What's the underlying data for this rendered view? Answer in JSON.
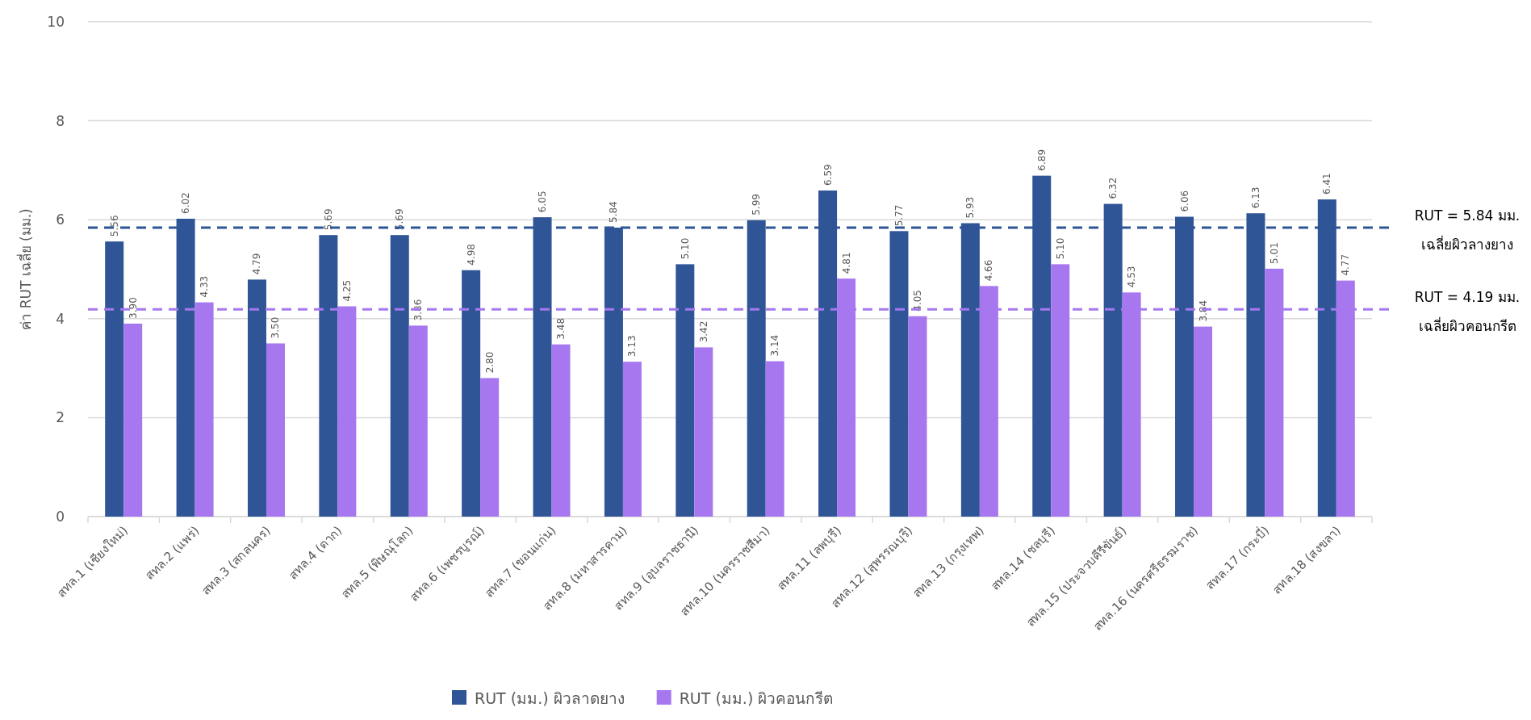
{
  "chart_data": {
    "type": "bar",
    "ylabel": "ค่า RUT เฉลี่ย (มม.)",
    "categories": [
      "สทล.1 (เชียงใหม่)",
      "สทล.2 (แพร่)",
      "สทล.3 (สกลนคร)",
      "สทล.4 (ตาก)",
      "สทล.5 (พิษณุโลก)",
      "สทล.6 (เพชรบูรณ์)",
      "สทล.7 (ขอนแก่น)",
      "สทล.8 (มหาสารคาม)",
      "สทล.9 (อุบลราชธานี)",
      "สทล.10 (นครราชสีมา)",
      "สทล.11 (ลพบุรี)",
      "สทล.12 (สุพรรณบุรี)",
      "สทล.13 (กรุงเทพ)",
      "สทล.14 (ชลบุรี)",
      "สทล.15 (ประจวบคีรีขันธ์)",
      "สทล.16 (นครศรีธรรมราช)",
      "สทล.17 (กระบี่)",
      "สทล.18 (สงขลา)"
    ],
    "series": [
      {
        "name": "RUT (มม.) ผิวลาดยาง",
        "color": "#2f5597",
        "values": [
          5.56,
          6.02,
          4.79,
          5.69,
          5.69,
          4.98,
          6.05,
          5.84,
          5.1,
          5.99,
          6.59,
          5.77,
          5.93,
          6.89,
          6.32,
          6.06,
          6.13,
          6.41
        ],
        "value_labels": [
          "5.56",
          "6.02",
          "4.79",
          "5.69",
          "5.69",
          "4.98",
          "6.05",
          "5.84",
          "5.10",
          "5.99",
          "6.59",
          "5.77",
          "5.93",
          "6.89",
          "6.32",
          "6.06",
          "6.13",
          "6.41"
        ]
      },
      {
        "name": "RUT (มม.) ผิวคอนกรีต",
        "color": "#a777f0",
        "values": [
          3.9,
          4.33,
          3.5,
          4.25,
          3.86,
          2.8,
          3.48,
          3.13,
          3.42,
          3.14,
          4.81,
          4.05,
          4.66,
          5.1,
          4.53,
          3.84,
          5.01,
          4.77
        ],
        "value_labels": [
          "3.90",
          "4.33",
          "3.50",
          "4.25",
          "3.86",
          "2.80",
          "3.48",
          "3.13",
          "3.42",
          "3.14",
          "4.81",
          "4.05",
          "4.66",
          "5.10",
          "4.53",
          "3.84",
          "5.01",
          "4.77"
        ]
      }
    ],
    "ylim": [
      0,
      10
    ],
    "yticks": [
      0,
      2,
      4,
      6,
      8,
      10
    ],
    "grid": "y",
    "legend": "bottom",
    "ref_lines": [
      {
        "axis": "y",
        "value": 5.84,
        "label": "RUT = 5.84 มม.\nเฉลี่ยผิวลางยาง",
        "color": "#2f5597",
        "line_style": "dashed"
      },
      {
        "axis": "y",
        "value": 4.19,
        "label": "RUT = 4.19 มม.\nเฉลี่ยผิวคอนกรีต",
        "color": "#a777f0",
        "line_style": "dashed"
      }
    ]
  }
}
